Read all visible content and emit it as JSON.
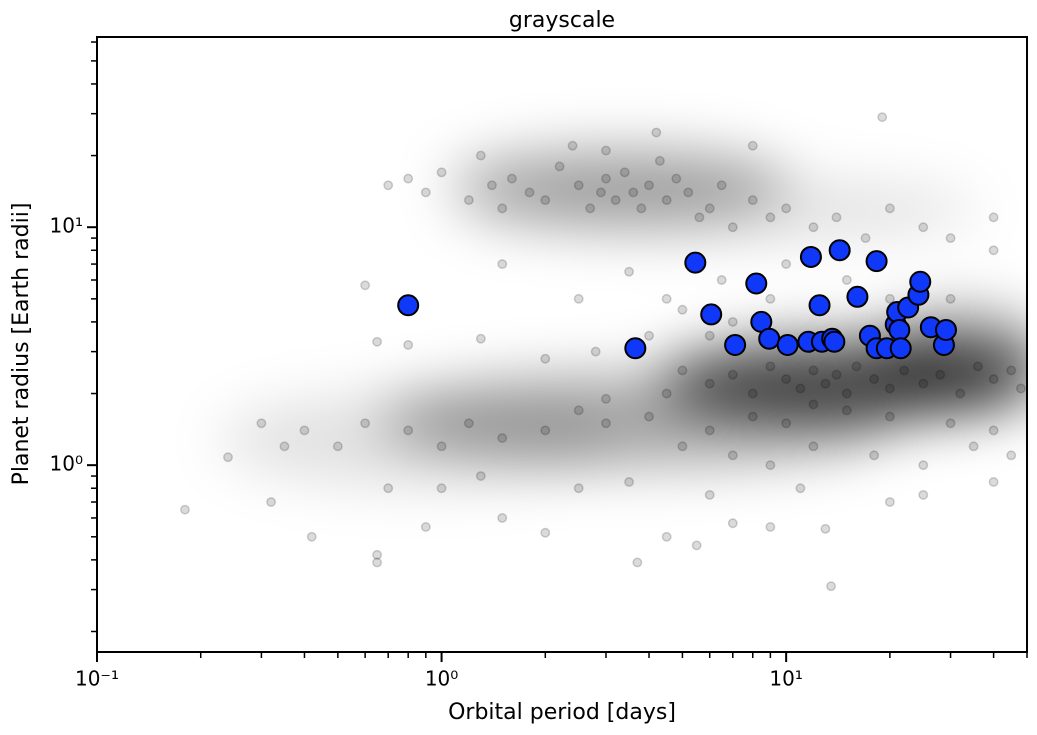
{
  "chart_data": {
    "type": "scatter",
    "title": "grayscale",
    "x_label": "Orbital period [days]",
    "y_label": "Planet radius [Earth radii]",
    "x_scale": "log",
    "y_scale": "log",
    "xlim": [
      0.1,
      50
    ],
    "ylim": [
      0.164,
      63
    ],
    "xticks": [
      {
        "value": 0.1,
        "label": "10⁻¹"
      },
      {
        "value": 1,
        "label": "10⁰"
      },
      {
        "value": 10,
        "label": "10¹"
      }
    ],
    "yticks": [
      {
        "value": 1,
        "label": "10⁰"
      },
      {
        "value": 10,
        "label": "10¹"
      }
    ],
    "series": [
      {
        "color": "#000000",
        "x": [
          0.7,
          0.8,
          0.9,
          1.0,
          1.2,
          1.4,
          1.5,
          1.6,
          1.8,
          2.0,
          2.2,
          2.5,
          2.7,
          2.9,
          3.0,
          3.2,
          3.4,
          3.6,
          3.8,
          4.0,
          4.3,
          4.5,
          4.8,
          5.2,
          5.6,
          6.0,
          6.5,
          7.0,
          8.0,
          9.0,
          10,
          12,
          14,
          17,
          20,
          25,
          30,
          40,
          1.3,
          2.4,
          4.2,
          3.0,
          19,
          8,
          1.5,
          2.5,
          3.5,
          4.5,
          5,
          6.5,
          7,
          9,
          10,
          15,
          20,
          30,
          40,
          0.6,
          0.8,
          0.65,
          1.3,
          2,
          2.8,
          4,
          6,
          5,
          6,
          7,
          8,
          9,
          10,
          11,
          12,
          13,
          14,
          15,
          16,
          18,
          20,
          22,
          25,
          28,
          32,
          36,
          40,
          45,
          48,
          12,
          15,
          20,
          30,
          40,
          8,
          10,
          6,
          4,
          3,
          2,
          1.5,
          1.2,
          1,
          0.8,
          0.6,
          0.5,
          0.4,
          0.35,
          0.3,
          3,
          4.5,
          2.5,
          5,
          7,
          9,
          12,
          18,
          25,
          35,
          45,
          0.18,
          0.24,
          0.32,
          0.42,
          0.65,
          0.65,
          0.9,
          1.5,
          2.0,
          3.7,
          4.5,
          5.5,
          7,
          9,
          13,
          13.5,
          25,
          40,
          0.7,
          1.0,
          1.3,
          2.5,
          3.5,
          6,
          11,
          20
        ],
        "values": [
          15,
          16,
          14,
          17,
          13,
          15,
          12,
          16,
          14,
          13,
          18,
          15,
          12,
          14,
          16,
          13,
          17,
          14,
          12,
          15,
          19,
          13,
          16,
          14,
          11,
          12,
          15,
          10,
          13,
          11,
          12,
          10,
          11,
          9,
          12,
          10,
          9,
          11,
          20,
          22,
          25,
          21,
          29,
          22,
          7,
          5,
          6.5,
          5,
          4.5,
          6,
          4,
          5,
          7,
          6,
          5,
          5,
          8,
          5.7,
          3.2,
          3.3,
          3.4,
          2.8,
          3,
          3.5,
          3.5,
          2.5,
          2.2,
          2.4,
          2.0,
          2.6,
          2.3,
          2.1,
          2.5,
          2.2,
          2.4,
          2.0,
          2.6,
          2.3,
          2.1,
          2.5,
          2.2,
          2.4,
          2.0,
          2.6,
          2.3,
          2.5,
          2.1,
          1.8,
          1.7,
          1.6,
          1.5,
          1.4,
          1.6,
          1.5,
          1.4,
          1.6,
          1.5,
          1.4,
          1.3,
          1.5,
          1.2,
          1.4,
          1.5,
          1.2,
          1.4,
          1.2,
          1.5,
          1.9,
          2.0,
          1.7,
          1.2,
          1.1,
          1.0,
          1.2,
          1.1,
          1.0,
          1.2,
          1.1,
          0.65,
          1.08,
          0.7,
          0.5,
          0.42,
          0.39,
          0.55,
          0.6,
          0.52,
          0.39,
          0.5,
          0.46,
          0.57,
          0.55,
          0.54,
          0.31,
          0.75,
          0.85,
          0.8,
          0.8,
          0.9,
          0.8,
          0.85,
          0.75,
          0.8,
          0.7
        ]
      },
      {
        "color": "#1038f8",
        "x": [
          0.8,
          3.65,
          5.45,
          6.06,
          7.11,
          8.19,
          8.47,
          8.93,
          10.1,
          11.6,
          11.8,
          12.5,
          12.7,
          13.6,
          13.8,
          14.3,
          16.1,
          17.5,
          18.3,
          18.3,
          19.6,
          20.8,
          21.0,
          21.3,
          21.5,
          22.6,
          24.2,
          24.5,
          26.3,
          28.7,
          29.1
        ],
        "values": [
          4.7,
          3.1,
          7.1,
          4.3,
          3.2,
          5.8,
          4.0,
          3.4,
          3.2,
          3.3,
          7.5,
          4.7,
          3.3,
          3.4,
          3.3,
          8.0,
          5.1,
          3.5,
          7.2,
          3.1,
          3.1,
          3.9,
          4.4,
          3.7,
          3.1,
          4.6,
          5.2,
          5.9,
          3.8,
          3.2,
          3.7
        ]
      }
    ]
  }
}
